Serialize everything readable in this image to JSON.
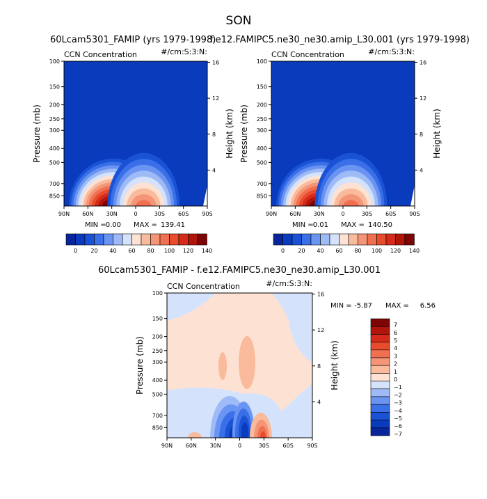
{
  "figure": {
    "season": "SON",
    "left_case": "60Lcam5301_FAMIP (yrs 1979-1998)",
    "right_case": "f.e12.FAMIPC5.ne30_ne30.amip_L30.001 (yrs 1979-1998)",
    "diff_title": "60Lcam5301_FAMIP - f.e12.FAMIPC5.ne30_ne30.amip_L30.001"
  },
  "colors": {
    "levels": [
      "#08259b",
      "#0a3bbd",
      "#1a52d6",
      "#3a6fe8",
      "#6a94f2",
      "#9ebbf7",
      "#d4e3fb",
      "#fde2d3",
      "#f9bb9c",
      "#f59577",
      "#f07050",
      "#e94c2d",
      "#d62b1a",
      "#b11409",
      "#7d0505"
    ]
  },
  "chart_data": [
    {
      "type": "heatmap",
      "name": "CCN Concentration",
      "units": "#/cm:S:3:N:",
      "case": "60Lcam5301_FAMIP",
      "xlabel": "",
      "ylabel": "Pressure (mb)",
      "ylabel_right": "Height (km)",
      "x_ticks": [
        "90N",
        "60N",
        "30N",
        "0",
        "30S",
        "60S",
        "90S"
      ],
      "y_ticks": [
        100,
        150,
        200,
        250,
        300,
        400,
        500,
        700,
        850
      ],
      "y_ticks_right": [
        16,
        12,
        8,
        4
      ],
      "xlim": [
        90,
        -90
      ],
      "ylim": [
        1000,
        100
      ],
      "min_label": "MIN =",
      "min": "0.00",
      "max_label": "MAX =",
      "max": "139.41",
      "colorbar_levels": [
        "0",
        "20",
        "40",
        "60",
        "80",
        "100",
        "120",
        "140"
      ],
      "lobes": [
        {
          "lat": 28,
          "p_top": 470,
          "peak": 139
        },
        {
          "lat": -10,
          "p_top": 430,
          "peak": 90
        }
      ]
    },
    {
      "type": "heatmap",
      "name": "CCN Concentration",
      "units": "#/cm:S:3:N:",
      "case": "f.e12.FAMIPC5.ne30_ne30.amip_L30.001",
      "xlabel": "",
      "ylabel": "Pressure (mb)",
      "ylabel_right": "Height (km)",
      "x_ticks": [
        "90N",
        "60N",
        "30N",
        "0",
        "30S",
        "60S",
        "90S"
      ],
      "y_ticks": [
        100,
        150,
        200,
        250,
        300,
        400,
        500,
        700,
        850
      ],
      "y_ticks_right": [
        16,
        12,
        8,
        4
      ],
      "xlim": [
        90,
        -90
      ],
      "ylim": [
        1000,
        100
      ],
      "min_label": "MIN =",
      "min": "0.01",
      "max_label": "MAX =",
      "max": "140.50",
      "colorbar_levels": [
        "0",
        "20",
        "40",
        "60",
        "80",
        "100",
        "120",
        "140"
      ],
      "lobes": [
        {
          "lat": 28,
          "p_top": 470,
          "peak": 140
        },
        {
          "lat": -10,
          "p_top": 430,
          "peak": 90
        }
      ]
    },
    {
      "type": "heatmap",
      "name": "CCN Concentration",
      "units": "#/cm:S:3:N:",
      "case": "difference",
      "ylabel": "Pressure (mb)",
      "ylabel_right": "Height (km)",
      "x_ticks": [
        "90N",
        "60N",
        "30N",
        "0",
        "30S",
        "60S",
        "90S"
      ],
      "y_ticks": [
        100,
        150,
        200,
        250,
        300,
        400,
        500,
        700,
        850
      ],
      "y_ticks_right": [
        16,
        12,
        8,
        4
      ],
      "xlim": [
        90,
        -90
      ],
      "ylim": [
        1000,
        100
      ],
      "min_label": "MIN =",
      "min": "-5.87",
      "max_label": "MAX =",
      "max": "6.56",
      "colorbar_levels": [
        "7",
        "6",
        "5",
        "4",
        "3",
        "2",
        "1",
        "0",
        "−1",
        "−2",
        "−3",
        "−4",
        "−5",
        "−6",
        "−7"
      ]
    }
  ]
}
